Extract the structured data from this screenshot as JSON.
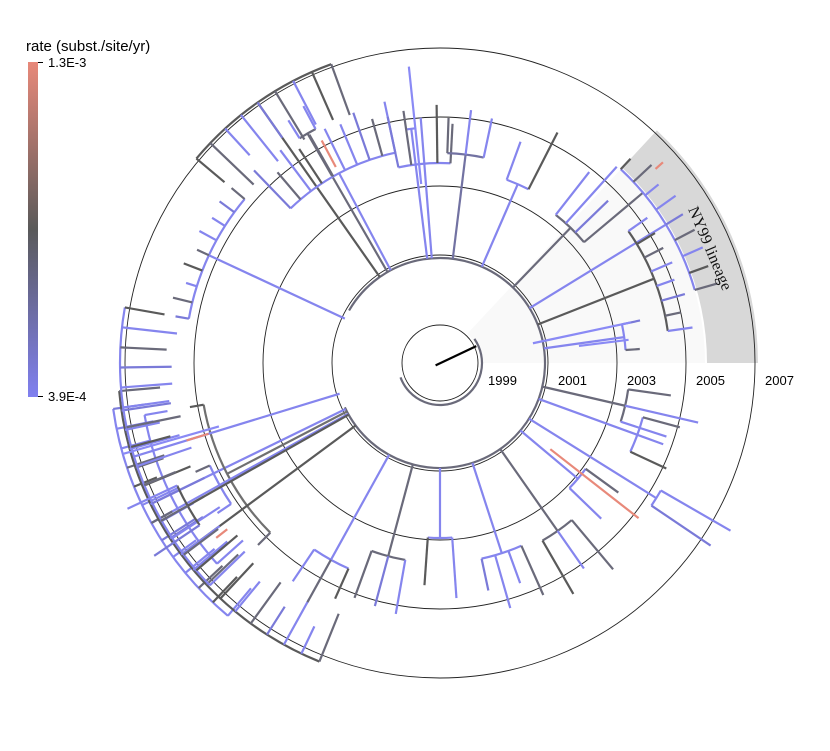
{
  "legend": {
    "title": "rate (subst./site/yr)",
    "max_label": "1.3E-3",
    "min_label": "3.9E-4",
    "color_high": "#e8897a",
    "color_mid": "#5a5a5a",
    "color_low": "#8080f0"
  },
  "time_axis": {
    "years": [
      "1999",
      "2001",
      "2003",
      "2005",
      "2007"
    ]
  },
  "lineage": {
    "label": "NY99 lineage",
    "color": "#d8d8d8"
  },
  "colors": {
    "ring": "#222222",
    "root_branch": "#000000",
    "background": "#ffffff"
  }
}
